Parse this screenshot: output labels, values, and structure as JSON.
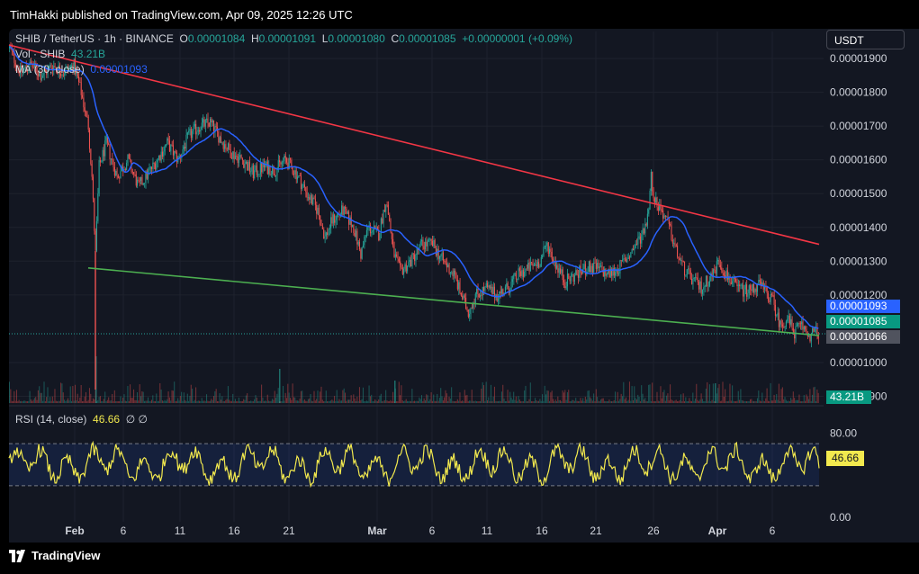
{
  "header": {
    "publisher": "TimHakki published on TradingView.com, Apr 09, 2025 12:26 UTC"
  },
  "legend": {
    "symbol": "SHIB / TetherUS · 1h · BINANCE",
    "o_label": "O",
    "o_value": "0.00001084",
    "h_label": "H",
    "h_value": "0.00001091",
    "l_label": "L",
    "l_value": "0.00001080",
    "c_label": "C",
    "c_value": "0.00001085",
    "change": "+0.00000001 (+0.09%)",
    "vol_label": "Vol · SHIB",
    "vol_value": "43.21B",
    "ma_label": "MA (30, close)",
    "ma_value": "0.00001093",
    "rsi_label": "RSI (14, close)",
    "rsi_value": "46.66",
    "rsi_extra": "∅ ∅"
  },
  "currency_button": "USDT",
  "price_tags": {
    "ma": "0.00001093",
    "close": "0.00001085",
    "cursor": "0.00001066",
    "volume": "43.21B",
    "rsi": "46.66"
  },
  "colors": {
    "up": "#26a69a",
    "down": "#ef5350",
    "ma": "#2962ff",
    "resistance": "#f23645",
    "support": "#4caf50",
    "rsi": "#f2e94e",
    "background": "#131722"
  },
  "chart_data": {
    "type": "candlestick",
    "symbol": "SHIB / TetherUS",
    "interval": "1h",
    "y_axis": {
      "ticks": [
        "0.00001900",
        "0.00001800",
        "0.00001700",
        "0.00001600",
        "0.00001500",
        "0.00001400",
        "0.00001300",
        "0.00001200",
        "0.00001000",
        "0.00000900"
      ],
      "range": [
        8.8e-06,
        1.98e-05
      ]
    },
    "x_axis": {
      "ticks": [
        "Feb",
        "6",
        "11",
        "16",
        "21",
        "Mar",
        "6",
        "11",
        "16",
        "21",
        "26",
        "Apr",
        "6"
      ]
    },
    "price_path": [
      [
        0,
        1.93e-05
      ],
      [
        3,
        1.86e-05
      ],
      [
        6,
        1.88e-05
      ],
      [
        9,
        1.85e-05
      ],
      [
        12,
        1.88e-05
      ],
      [
        15,
        1.86e-05
      ],
      [
        18,
        1.88e-05
      ],
      [
        20,
        1.8e-05
      ],
      [
        22,
        1.7e-05
      ],
      [
        23,
        1.55e-05
      ],
      [
        24,
        1.32e-05
      ],
      [
        25,
        1.58e-05
      ],
      [
        27,
        1.65e-05
      ],
      [
        30,
        1.55e-05
      ],
      [
        33,
        1.6e-05
      ],
      [
        36,
        1.52e-05
      ],
      [
        40,
        1.58e-05
      ],
      [
        44,
        1.65e-05
      ],
      [
        47,
        1.6e-05
      ],
      [
        50,
        1.67e-05
      ],
      [
        53,
        1.7e-05
      ],
      [
        56,
        1.71e-05
      ],
      [
        59,
        1.66e-05
      ],
      [
        62,
        1.62e-05
      ],
      [
        65,
        1.6e-05
      ],
      [
        68,
        1.56e-05
      ],
      [
        71,
        1.58e-05
      ],
      [
        74,
        1.57e-05
      ],
      [
        77,
        1.6e-05
      ],
      [
        80,
        1.56e-05
      ],
      [
        83,
        1.5e-05
      ],
      [
        86,
        1.45e-05
      ],
      [
        88,
        1.37e-05
      ],
      [
        90,
        1.42e-05
      ],
      [
        93,
        1.45e-05
      ],
      [
        96,
        1.4e-05
      ],
      [
        98,
        1.32e-05
      ],
      [
        100,
        1.4e-05
      ],
      [
        103,
        1.38e-05
      ],
      [
        105,
        1.48e-05
      ],
      [
        106,
        1.42e-05
      ],
      [
        107,
        1.33e-05
      ],
      [
        109,
        1.27e-05
      ],
      [
        112,
        1.3e-05
      ],
      [
        115,
        1.35e-05
      ],
      [
        118,
        1.35e-05
      ],
      [
        121,
        1.3e-05
      ],
      [
        124,
        1.26e-05
      ],
      [
        126,
        1.2e-05
      ],
      [
        128,
        1.15e-05
      ],
      [
        130,
        1.2e-05
      ],
      [
        133,
        1.22e-05
      ],
      [
        136,
        1.2e-05
      ],
      [
        139,
        1.22e-05
      ],
      [
        142,
        1.26e-05
      ],
      [
        145,
        1.28e-05
      ],
      [
        148,
        1.3e-05
      ],
      [
        150,
        1.35e-05
      ],
      [
        152,
        1.3e-05
      ],
      [
        155,
        1.24e-05
      ],
      [
        158,
        1.26e-05
      ],
      [
        161,
        1.28e-05
      ],
      [
        164,
        1.28e-05
      ],
      [
        167,
        1.26e-05
      ],
      [
        170,
        1.28e-05
      ],
      [
        173,
        1.32e-05
      ],
      [
        176,
        1.37e-05
      ],
      [
        178,
        1.43e-05
      ],
      [
        179,
        1.55e-05
      ],
      [
        180,
        1.48e-05
      ],
      [
        182,
        1.45e-05
      ],
      [
        184,
        1.4e-05
      ],
      [
        186,
        1.33e-05
      ],
      [
        188,
        1.28e-05
      ],
      [
        190,
        1.25e-05
      ],
      [
        193,
        1.22e-05
      ],
      [
        196,
        1.26e-05
      ],
      [
        198,
        1.3e-05
      ],
      [
        200,
        1.26e-05
      ],
      [
        203,
        1.22e-05
      ],
      [
        206,
        1.21e-05
      ],
      [
        209,
        1.23e-05
      ],
      [
        211,
        1.21e-05
      ],
      [
        213,
        1.18e-05
      ],
      [
        215,
        1.11e-05
      ],
      [
        217,
        1.13e-05
      ],
      [
        219,
        1.09e-05
      ],
      [
        221,
        1.11e-05
      ],
      [
        223,
        1.08e-05
      ],
      [
        225,
        1.09e-05
      ]
    ],
    "ma_30_last": 1.093e-05,
    "trendlines": [
      {
        "name": "resistance",
        "from": [
          0,
          1.94e-05
        ],
        "to": [
          225,
          1.35e-05
        ]
      },
      {
        "name": "support",
        "from": [
          22,
          1.28e-05
        ],
        "to": [
          225,
          1.08e-05
        ]
      }
    ],
    "volume_last": "43.21B",
    "rsi": {
      "period": 14,
      "last": 46.66,
      "levels": [
        70,
        30
      ],
      "axis_ticks": [
        "80.00",
        "0.00"
      ],
      "range": [
        0,
        100
      ]
    }
  },
  "branding": {
    "logo_text": "TradingView"
  }
}
